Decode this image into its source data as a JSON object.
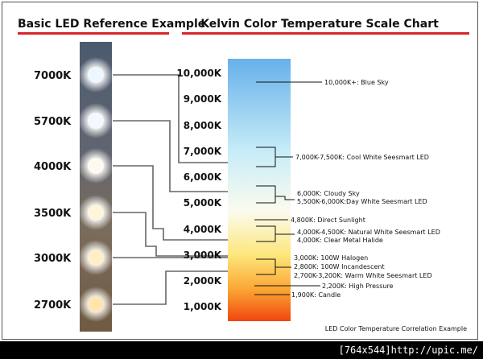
{
  "left_title": "Basic LED Reference Example",
  "right_title": "Kelvin Color Temperature Scale Chart",
  "led_labels": [
    "7000K",
    "5700K",
    "4000K",
    "3500K",
    "3000K",
    "2700K"
  ],
  "scale_ticks": [
    "10,000K",
    "9,000K",
    "8,000K",
    "7,000K",
    "6,000K",
    "5,000K",
    "4,000K",
    "3,000K",
    "2,000K",
    "1,000K"
  ],
  "annotations": {
    "blue_sky": "10,000K+: Blue Sky",
    "cool_white": "7,000K-7,500K: Cool White Seesmart LED",
    "cloudy_1": "6,000K: Cloudy Sky",
    "cloudy_2": "5,500K-6,000K:Day White Seesmart LED",
    "direct_sun": "4,800K: Direct Sunlight",
    "natural_1": "4,000K-4,500K: Natural White Seesmart LED",
    "natural_2": "4,000K: Clear Metal Halide",
    "halogen": "3,000K: 100W Halogen",
    "incandescent": "2,800K: 100W Incandescent",
    "warm_white": "2,700K-3,200K: Warm White Seesmart LED",
    "high_pressure": "2,200K: High Pressure",
    "candle": "1,900K: Candle"
  },
  "footer": "LED Color Temperature Correlation Example",
  "watermark": "[764x544]http://upic.me/",
  "colors": {
    "accent": "#d9242b",
    "scale_top": "#6ab2ec",
    "scale_mid": "#ffffff",
    "scale_bottom": "#f04a10"
  }
}
